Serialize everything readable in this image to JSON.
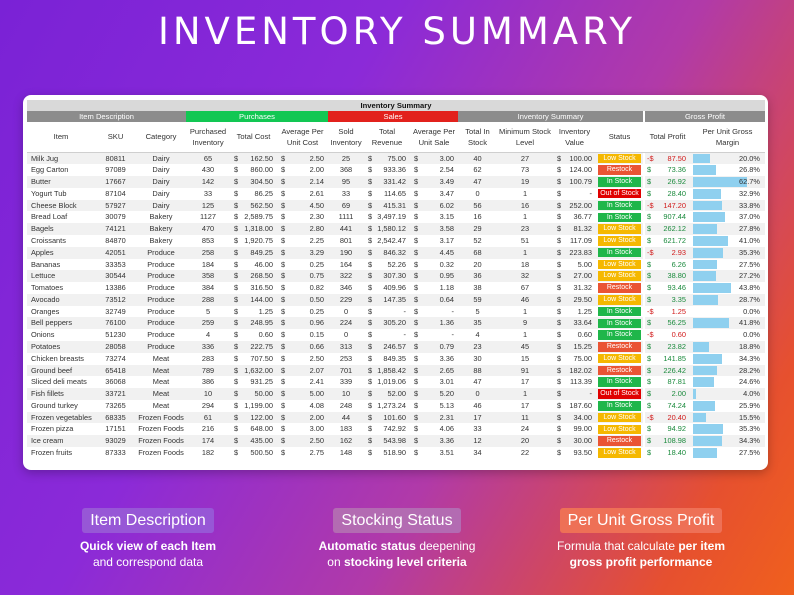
{
  "page_title": "INVENTORY SUMMARY",
  "sheet": {
    "banner": "Inventory Summary",
    "groups": {
      "item_description": "Item Description",
      "purchases": "Purchases",
      "sales": "Sales",
      "inventory_summary": "Inventory Summary",
      "gross_profit": "Gross Profit"
    },
    "headers": {
      "item": "Item",
      "sku": "SKU",
      "category": "Category",
      "purchased_inventory": "Purchased Inventory",
      "total_cost": "Total Cost",
      "avg_unit_cost": "Average Per Unit Cost",
      "sold_inventory": "Sold Inventory",
      "total_revenue": "Total Revenue",
      "avg_unit_sale": "Average Per Unit Sale",
      "total_in_stock": "Total In Stock",
      "min_stock_level": "Minimum Stock Level",
      "inventory_value": "Inventory Value",
      "status": "Status",
      "total_profit": "Total Profit",
      "per_unit_gross_margin": "Per Unit Gross Margin"
    },
    "currency": "$",
    "colors": {
      "purchases": "#12c753",
      "sales": "#e2211c",
      "low_stock": "#f5b800",
      "restock": "#ea5434",
      "in_stock": "#1fb64a",
      "out_of_stock": "#e00000",
      "margin_bar": "#8fd0ef"
    },
    "rows": [
      {
        "item": "Milk Jug",
        "sku": "80811",
        "category": "Dairy",
        "purchased": "65",
        "total_cost": "162.50",
        "avg_cost": "2.50",
        "sold": "25",
        "revenue": "75.00",
        "avg_sale": "3.00",
        "in_stock": "40",
        "min_level": "27",
        "inv_value": "100.00",
        "status": "Low Stock",
        "status_type": "low",
        "profit_sign": "-",
        "profit": "87.50",
        "margin": "20.0%",
        "margin_value": 0.2
      },
      {
        "item": "Egg Carton",
        "sku": "97089",
        "category": "Dairy",
        "purchased": "430",
        "total_cost": "860.00",
        "avg_cost": "2.00",
        "sold": "368",
        "revenue": "933.36",
        "avg_sale": "2.54",
        "in_stock": "62",
        "min_level": "73",
        "inv_value": "124.00",
        "status": "Restock",
        "status_type": "restock",
        "profit_sign": "",
        "profit": "73.36",
        "margin": "26.8%",
        "margin_value": 0.268
      },
      {
        "item": "Butter",
        "sku": "17667",
        "category": "Dairy",
        "purchased": "142",
        "total_cost": "304.50",
        "avg_cost": "2.14",
        "sold": "95",
        "revenue": "331.42",
        "avg_sale": "3.49",
        "in_stock": "47",
        "min_level": "19",
        "inv_value": "100.79",
        "status": "In Stock",
        "status_type": "in",
        "profit_sign": "",
        "profit": "26.92",
        "margin": "62.7%",
        "margin_value": 0.627
      },
      {
        "item": "Yogurt Tub",
        "sku": "87104",
        "category": "Dairy",
        "purchased": "33",
        "total_cost": "86.25",
        "avg_cost": "2.61",
        "sold": "33",
        "revenue": "114.65",
        "avg_sale": "3.47",
        "in_stock": "0",
        "min_level": "1",
        "inv_value": "-",
        "status": "Out of Stock",
        "status_type": "out",
        "profit_sign": "",
        "profit": "28.40",
        "margin": "32.9%",
        "margin_value": 0.329
      },
      {
        "item": "Cheese Block",
        "sku": "57927",
        "category": "Dairy",
        "purchased": "125",
        "total_cost": "562.50",
        "avg_cost": "4.50",
        "sold": "69",
        "revenue": "415.31",
        "avg_sale": "6.02",
        "in_stock": "56",
        "min_level": "16",
        "inv_value": "252.00",
        "status": "In Stock",
        "status_type": "in",
        "profit_sign": "-",
        "profit": "147.20",
        "margin": "33.8%",
        "margin_value": 0.338
      },
      {
        "item": "Bread Loaf",
        "sku": "30079",
        "category": "Bakery",
        "purchased": "1127",
        "total_cost": "2,589.75",
        "avg_cost": "2.30",
        "sold": "1111",
        "revenue": "3,497.19",
        "avg_sale": "3.15",
        "in_stock": "16",
        "min_level": "1",
        "inv_value": "36.77",
        "status": "In Stock",
        "status_type": "in",
        "profit_sign": "",
        "profit": "907.44",
        "margin": "37.0%",
        "margin_value": 0.37
      },
      {
        "item": "Bagels",
        "sku": "74121",
        "category": "Bakery",
        "purchased": "470",
        "total_cost": "1,318.00",
        "avg_cost": "2.80",
        "sold": "441",
        "revenue": "1,580.12",
        "avg_sale": "3.58",
        "in_stock": "29",
        "min_level": "23",
        "inv_value": "81.32",
        "status": "Low Stock",
        "status_type": "low",
        "profit_sign": "",
        "profit": "262.12",
        "margin": "27.8%",
        "margin_value": 0.278
      },
      {
        "item": "Croissants",
        "sku": "84870",
        "category": "Bakery",
        "purchased": "853",
        "total_cost": "1,920.75",
        "avg_cost": "2.25",
        "sold": "801",
        "revenue": "2,542.47",
        "avg_sale": "3.17",
        "in_stock": "52",
        "min_level": "51",
        "inv_value": "117.09",
        "status": "Low Stock",
        "status_type": "low",
        "profit_sign": "",
        "profit": "621.72",
        "margin": "41.0%",
        "margin_value": 0.41
      },
      {
        "item": "Apples",
        "sku": "42051",
        "category": "Produce",
        "purchased": "258",
        "total_cost": "849.25",
        "avg_cost": "3.29",
        "sold": "190",
        "revenue": "846.32",
        "avg_sale": "4.45",
        "in_stock": "68",
        "min_level": "1",
        "inv_value": "223.83",
        "status": "In Stock",
        "status_type": "in",
        "profit_sign": "-",
        "profit": "2.93",
        "margin": "35.3%",
        "margin_value": 0.353
      },
      {
        "item": "Bananas",
        "sku": "33353",
        "category": "Produce",
        "purchased": "184",
        "total_cost": "46.00",
        "avg_cost": "0.25",
        "sold": "164",
        "revenue": "52.26",
        "avg_sale": "0.32",
        "in_stock": "20",
        "min_level": "18",
        "inv_value": "5.00",
        "status": "Low Stock",
        "status_type": "low",
        "profit_sign": "",
        "profit": "6.26",
        "margin": "27.5%",
        "margin_value": 0.275
      },
      {
        "item": "Lettuce",
        "sku": "30544",
        "category": "Produce",
        "purchased": "358",
        "total_cost": "268.50",
        "avg_cost": "0.75",
        "sold": "322",
        "revenue": "307.30",
        "avg_sale": "0.95",
        "in_stock": "36",
        "min_level": "32",
        "inv_value": "27.00",
        "status": "Low Stock",
        "status_type": "low",
        "profit_sign": "",
        "profit": "38.80",
        "margin": "27.2%",
        "margin_value": 0.272
      },
      {
        "item": "Tomatoes",
        "sku": "13386",
        "category": "Produce",
        "purchased": "384",
        "total_cost": "316.50",
        "avg_cost": "0.82",
        "sold": "346",
        "revenue": "409.96",
        "avg_sale": "1.18",
        "in_stock": "38",
        "min_level": "67",
        "inv_value": "31.32",
        "status": "Restock",
        "status_type": "restock",
        "profit_sign": "",
        "profit": "93.46",
        "margin": "43.8%",
        "margin_value": 0.438
      },
      {
        "item": "Avocado",
        "sku": "73512",
        "category": "Produce",
        "purchased": "288",
        "total_cost": "144.00",
        "avg_cost": "0.50",
        "sold": "229",
        "revenue": "147.35",
        "avg_sale": "0.64",
        "in_stock": "59",
        "min_level": "46",
        "inv_value": "29.50",
        "status": "Low Stock",
        "status_type": "low",
        "profit_sign": "",
        "profit": "3.35",
        "margin": "28.7%",
        "margin_value": 0.287
      },
      {
        "item": "Oranges",
        "sku": "32749",
        "category": "Produce",
        "purchased": "5",
        "total_cost": "1.25",
        "avg_cost": "0.25",
        "sold": "0",
        "revenue": "-",
        "avg_sale": "-",
        "in_stock": "5",
        "min_level": "1",
        "inv_value": "1.25",
        "status": "In Stock",
        "status_type": "in",
        "profit_sign": "-",
        "profit": "1.25",
        "margin": "0.0%",
        "margin_value": 0.0
      },
      {
        "item": "Bell peppers",
        "sku": "76100",
        "category": "Produce",
        "purchased": "259",
        "total_cost": "248.95",
        "avg_cost": "0.96",
        "sold": "224",
        "revenue": "305.20",
        "avg_sale": "1.36",
        "in_stock": "35",
        "min_level": "9",
        "inv_value": "33.64",
        "status": "In Stock",
        "status_type": "in",
        "profit_sign": "",
        "profit": "56.25",
        "margin": "41.8%",
        "margin_value": 0.418
      },
      {
        "item": "Onions",
        "sku": "51230",
        "category": "Produce",
        "purchased": "4",
        "total_cost": "0.60",
        "avg_cost": "0.15",
        "sold": "0",
        "revenue": "-",
        "avg_sale": "-",
        "in_stock": "4",
        "min_level": "1",
        "inv_value": "0.60",
        "status": "In Stock",
        "status_type": "in",
        "profit_sign": "-",
        "profit": "0.60",
        "margin": "0.0%",
        "margin_value": 0.0
      },
      {
        "item": "Potatoes",
        "sku": "28058",
        "category": "Produce",
        "purchased": "336",
        "total_cost": "222.75",
        "avg_cost": "0.66",
        "sold": "313",
        "revenue": "246.57",
        "avg_sale": "0.79",
        "in_stock": "23",
        "min_level": "45",
        "inv_value": "15.25",
        "status": "Restock",
        "status_type": "restock",
        "profit_sign": "",
        "profit": "23.82",
        "margin": "18.8%",
        "margin_value": 0.188
      },
      {
        "item": "Chicken breasts",
        "sku": "73274",
        "category": "Meat",
        "purchased": "283",
        "total_cost": "707.50",
        "avg_cost": "2.50",
        "sold": "253",
        "revenue": "849.35",
        "avg_sale": "3.36",
        "in_stock": "30",
        "min_level": "15",
        "inv_value": "75.00",
        "status": "Low Stock",
        "status_type": "low",
        "profit_sign": "",
        "profit": "141.85",
        "margin": "34.3%",
        "margin_value": 0.343
      },
      {
        "item": "Ground beef",
        "sku": "65418",
        "category": "Meat",
        "purchased": "789",
        "total_cost": "1,632.00",
        "avg_cost": "2.07",
        "sold": "701",
        "revenue": "1,858.42",
        "avg_sale": "2.65",
        "in_stock": "88",
        "min_level": "91",
        "inv_value": "182.02",
        "status": "Restock",
        "status_type": "restock",
        "profit_sign": "",
        "profit": "226.42",
        "margin": "28.2%",
        "margin_value": 0.282
      },
      {
        "item": "Sliced deli meats",
        "sku": "36068",
        "category": "Meat",
        "purchased": "386",
        "total_cost": "931.25",
        "avg_cost": "2.41",
        "sold": "339",
        "revenue": "1,019.06",
        "avg_sale": "3.01",
        "in_stock": "47",
        "min_level": "17",
        "inv_value": "113.39",
        "status": "In Stock",
        "status_type": "in",
        "profit_sign": "",
        "profit": "87.81",
        "margin": "24.6%",
        "margin_value": 0.246
      },
      {
        "item": "Fish fillets",
        "sku": "33721",
        "category": "Meat",
        "purchased": "10",
        "total_cost": "50.00",
        "avg_cost": "5.00",
        "sold": "10",
        "revenue": "52.00",
        "avg_sale": "5.20",
        "in_stock": "0",
        "min_level": "1",
        "inv_value": "-",
        "status": "Out of Stock",
        "status_type": "out",
        "profit_sign": "",
        "profit": "2.00",
        "margin": "4.0%",
        "margin_value": 0.04
      },
      {
        "item": "Ground turkey",
        "sku": "73265",
        "category": "Meat",
        "purchased": "294",
        "total_cost": "1,199.00",
        "avg_cost": "4.08",
        "sold": "248",
        "revenue": "1,273.24",
        "avg_sale": "5.13",
        "in_stock": "46",
        "min_level": "17",
        "inv_value": "187.60",
        "status": "In Stock",
        "status_type": "in",
        "profit_sign": "",
        "profit": "74.24",
        "margin": "25.9%",
        "margin_value": 0.259
      },
      {
        "item": "Frozen vegetables",
        "sku": "68335",
        "category": "Frozen Foods",
        "purchased": "61",
        "total_cost": "122.00",
        "avg_cost": "2.00",
        "sold": "44",
        "revenue": "101.60",
        "avg_sale": "2.31",
        "in_stock": "17",
        "min_level": "11",
        "inv_value": "34.00",
        "status": "Low Stock",
        "status_type": "low",
        "profit_sign": "-",
        "profit": "20.40",
        "margin": "15.5%",
        "margin_value": 0.155
      },
      {
        "item": "Frozen pizza",
        "sku": "17151",
        "category": "Frozen Foods",
        "purchased": "216",
        "total_cost": "648.00",
        "avg_cost": "3.00",
        "sold": "183",
        "revenue": "742.92",
        "avg_sale": "4.06",
        "in_stock": "33",
        "min_level": "24",
        "inv_value": "99.00",
        "status": "Low Stock",
        "status_type": "low",
        "profit_sign": "",
        "profit": "94.92",
        "margin": "35.3%",
        "margin_value": 0.353
      },
      {
        "item": "Ice cream",
        "sku": "93029",
        "category": "Frozen Foods",
        "purchased": "174",
        "total_cost": "435.00",
        "avg_cost": "2.50",
        "sold": "162",
        "revenue": "543.98",
        "avg_sale": "3.36",
        "in_stock": "12",
        "min_level": "20",
        "inv_value": "30.00",
        "status": "Restock",
        "status_type": "restock",
        "profit_sign": "",
        "profit": "108.98",
        "margin": "34.3%",
        "margin_value": 0.343
      },
      {
        "item": "Frozen fruits",
        "sku": "87333",
        "category": "Frozen Foods",
        "purchased": "182",
        "total_cost": "500.50",
        "avg_cost": "2.75",
        "sold": "148",
        "revenue": "518.90",
        "avg_sale": "3.51",
        "in_stock": "34",
        "min_level": "22",
        "inv_value": "93.50",
        "status": "Low Stock",
        "status_type": "low",
        "profit_sign": "",
        "profit": "18.40",
        "margin": "27.5%",
        "margin_value": 0.275
      }
    ]
  },
  "features": {
    "item_description": {
      "badge": "Item Description",
      "line1_bold": "Quick view of each Item",
      "line2": "and correspond data"
    },
    "stocking_status": {
      "badge": "Stocking Status",
      "line1_bold": "Automatic status",
      "line1_rest": " deepening",
      "line2_pre": "on ",
      "line2_bold": "stocking level criteria"
    },
    "gross_profit": {
      "badge": "Per Unit Gross Profit",
      "line1_pre": "Formula that calculate ",
      "line1_bold": "per item",
      "line2_bold": "gross profit performance"
    }
  }
}
